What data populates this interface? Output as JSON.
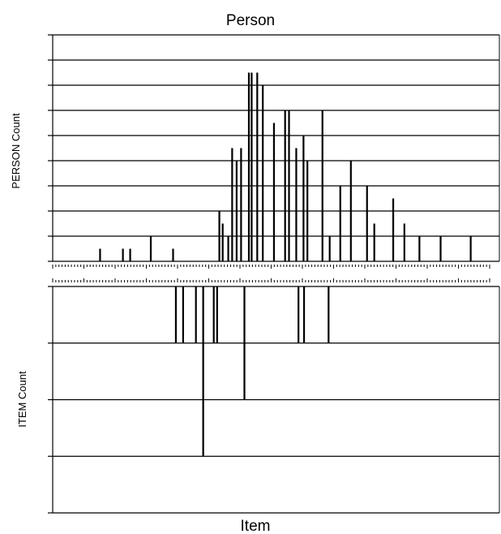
{
  "chart_data": [
    {
      "type": "bar",
      "title": "Person",
      "xlabel": "",
      "ylabel": "PERSON Count",
      "ylim": [
        0,
        18
      ],
      "yticks": [
        "0",
        "2",
        "4",
        "6",
        "8",
        "10",
        "12",
        "14",
        "16",
        "18"
      ],
      "xlim": [
        -3.0,
        4.84
      ],
      "xticks": [
        "-3.00",
        "-2.44",
        "-1.88",
        "-1.32",
        "-0.76",
        "-0.20",
        "0.36",
        "0.92",
        "1.48",
        "2.04",
        "2.60",
        "3.16",
        "3.72",
        "4.28",
        "4.84"
      ],
      "grid": true,
      "x": [
        -2.15,
        -1.74,
        -1.61,
        -1.24,
        -0.84,
        -0.01,
        0.05,
        0.15,
        0.22,
        0.3,
        0.38,
        0.52,
        0.57,
        0.67,
        0.77,
        0.97,
        1.17,
        1.24,
        1.37,
        1.5,
        1.57,
        1.84,
        1.97,
        2.16,
        2.35,
        2.64,
        2.77,
        3.11,
        3.31,
        3.58,
        3.96,
        4.5
      ],
      "values": [
        1,
        1,
        1,
        2,
        1,
        4,
        3,
        2,
        9,
        8,
        9,
        15,
        15,
        15,
        14,
        11,
        12,
        12,
        9,
        10,
        8,
        12,
        2,
        6,
        8,
        6,
        3,
        5,
        3,
        2,
        2,
        2
      ]
    },
    {
      "type": "bar",
      "title": "",
      "xlabel": "Item",
      "ylabel": "ITEM Count",
      "ylim": [
        0,
        4
      ],
      "yticks": [
        "0",
        "1",
        "2",
        "3",
        "4"
      ],
      "inverted": true,
      "grid": true,
      "x": [
        -0.79,
        -0.66,
        -0.43,
        -0.3,
        -0.11,
        -0.05,
        0.44,
        1.41,
        1.51,
        1.95
      ],
      "values": [
        1,
        1,
        1,
        3,
        1,
        1,
        2,
        1,
        1,
        1
      ]
    }
  ]
}
